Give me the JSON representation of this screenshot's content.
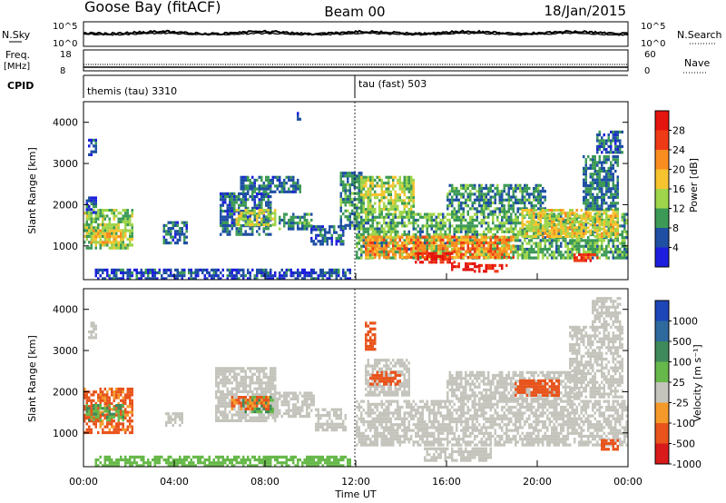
{
  "header": {
    "station": "Goose Bay (fitACF)",
    "beam": "Beam 00",
    "date": "18/Jan/2015"
  },
  "panels": {
    "nsky": {
      "label": "N.Sky",
      "ticks": [
        "10^5",
        "10^0"
      ],
      "right_label": "N.Search",
      "right_ticks": [
        "10^5",
        "10^0"
      ]
    },
    "freq": {
      "label": "Freq.",
      "unit": "[MHz]",
      "ticks": [
        "18",
        "8"
      ],
      "right_label": "Nave",
      "right_ticks": [
        "60",
        "0"
      ]
    },
    "cpid": {
      "label": "CPID",
      "segments": [
        "themis (tau) 3310",
        "tau (fast) 503"
      ]
    }
  },
  "power_colorbar": {
    "title": "Power [dB]",
    "labels": [
      "28",
      "24",
      "20",
      "16",
      "12",
      "8",
      "4"
    ],
    "colors": [
      "#e4140f",
      "#ef3a16",
      "#f98d20",
      "#f7c430",
      "#9fd54a",
      "#3c9a56",
      "#1e4fa3",
      "#1d1edd"
    ]
  },
  "velocity_colorbar": {
    "title": "Velocity [m s⁻¹]",
    "labels": [
      "1000",
      "500",
      "100",
      "25",
      "-25",
      "-100",
      "-500",
      "-1000"
    ],
    "colors": [
      "#1d46b8",
      "#2e6a9e",
      "#3f8a5a",
      "#67b84a",
      "#c4c4bc",
      "#f59a2a",
      "#e8541c",
      "#d81a1a"
    ]
  },
  "chart_data": [
    {
      "type": "heatmap",
      "name": "power",
      "ylabel": "Slant Range [km]",
      "ylim": [
        180,
        4500
      ],
      "yticks": [
        1000,
        2000,
        3000,
        4000
      ],
      "xlim": [
        0,
        24
      ],
      "xticks": [
        "00:00",
        "04:00",
        "08:00",
        "12:00",
        "16:00",
        "20:00",
        "00:00"
      ],
      "regions": [
        {
          "t0": 0.0,
          "t1": 2.2,
          "r0": 950,
          "r1": 1900,
          "v": 13
        },
        {
          "t0": 0.3,
          "t1": 1.9,
          "r0": 1050,
          "r1": 1400,
          "v": 18
        },
        {
          "t0": 0.1,
          "t1": 0.6,
          "r0": 1800,
          "r1": 2200,
          "v": 6
        },
        {
          "t0": 0.2,
          "t1": 0.6,
          "r0": 3200,
          "r1": 3600,
          "v": 5
        },
        {
          "t0": 3.5,
          "t1": 4.6,
          "r0": 1100,
          "r1": 1600,
          "v": 7
        },
        {
          "t0": 6.0,
          "t1": 8.3,
          "r0": 1300,
          "r1": 2300,
          "v": 7
        },
        {
          "t0": 6.7,
          "t1": 8.5,
          "r0": 1500,
          "r1": 1900,
          "v": 15
        },
        {
          "t0": 6.9,
          "t1": 9.6,
          "r0": 2300,
          "r1": 2700,
          "v": 7
        },
        {
          "t0": 8.6,
          "t1": 10.1,
          "r0": 1400,
          "r1": 1800,
          "v": 9
        },
        {
          "t0": 10.0,
          "t1": 11.5,
          "r0": 1050,
          "r1": 1500,
          "v": 6
        },
        {
          "t0": 9.4,
          "t1": 9.6,
          "r0": 4100,
          "r1": 4250,
          "v": 4
        },
        {
          "t0": 11.3,
          "t1": 12.3,
          "r0": 1400,
          "r1": 2800,
          "v": 9
        },
        {
          "t0": 12.0,
          "t1": 24.0,
          "r0": 700,
          "r1": 1800,
          "v": 11
        },
        {
          "t0": 12.3,
          "t1": 19.0,
          "r0": 750,
          "r1": 1250,
          "v": 22
        },
        {
          "t0": 14.6,
          "t1": 16.4,
          "r0": 620,
          "r1": 850,
          "v": 29
        },
        {
          "t0": 16.2,
          "t1": 17.4,
          "r0": 450,
          "r1": 600,
          "v": 30
        },
        {
          "t0": 17.2,
          "t1": 18.7,
          "r0": 400,
          "r1": 560,
          "v": 29
        },
        {
          "t0": 12.2,
          "t1": 14.6,
          "r0": 1800,
          "r1": 2700,
          "v": 14
        },
        {
          "t0": 16.0,
          "t1": 20.4,
          "r0": 1800,
          "r1": 2500,
          "v": 9
        },
        {
          "t0": 19.3,
          "t1": 23.6,
          "r0": 1200,
          "r1": 1900,
          "v": 17
        },
        {
          "t0": 22.0,
          "t1": 23.6,
          "r0": 1900,
          "r1": 3200,
          "v": 8
        },
        {
          "t0": 22.6,
          "t1": 23.8,
          "r0": 3300,
          "r1": 3800,
          "v": 6
        },
        {
          "t0": 21.6,
          "t1": 22.6,
          "r0": 620,
          "r1": 820,
          "v": 27
        },
        {
          "t0": 0.5,
          "t1": 11.8,
          "r0": 200,
          "r1": 450,
          "v": 5
        }
      ]
    },
    {
      "type": "heatmap",
      "name": "velocity",
      "ylabel": "Slant Range [km]",
      "xlabel": "Time UT",
      "ylim": [
        180,
        4500
      ],
      "yticks": [
        1000,
        2000,
        3000,
        4000
      ],
      "xlim": [
        0,
        24
      ],
      "xticks": [
        "00:00",
        "04:00",
        "08:00",
        "12:00",
        "16:00",
        "20:00",
        "00:00"
      ],
      "regions": [
        {
          "t0": 0.0,
          "t1": 2.2,
          "r0": 1000,
          "r1": 2100,
          "v": -120
        },
        {
          "t0": 0.1,
          "t1": 1.8,
          "r0": 1300,
          "r1": 1700,
          "v": 60
        },
        {
          "t0": 0.2,
          "t1": 0.6,
          "r0": 3300,
          "r1": 3700,
          "v": 0
        },
        {
          "t0": 3.6,
          "t1": 4.4,
          "r0": 1200,
          "r1": 1500,
          "v": 0
        },
        {
          "t0": 5.8,
          "t1": 8.5,
          "r0": 1300,
          "r1": 2600,
          "v": 0
        },
        {
          "t0": 7.0,
          "t1": 8.4,
          "r0": 1500,
          "r1": 1900,
          "v": 70
        },
        {
          "t0": 6.5,
          "t1": 8.2,
          "r0": 1600,
          "r1": 1900,
          "v": -110
        },
        {
          "t0": 8.5,
          "t1": 10.2,
          "r0": 1400,
          "r1": 2000,
          "v": 0
        },
        {
          "t0": 10.2,
          "t1": 11.6,
          "r0": 1100,
          "r1": 1600,
          "v": 0
        },
        {
          "t0": 12.0,
          "t1": 24.0,
          "r0": 700,
          "r1": 1800,
          "v": 0
        },
        {
          "t0": 12.4,
          "t1": 14.4,
          "r0": 1900,
          "r1": 2800,
          "v": 0
        },
        {
          "t0": 12.6,
          "t1": 14.0,
          "r0": 2200,
          "r1": 2500,
          "v": -300
        },
        {
          "t0": 12.4,
          "t1": 12.9,
          "r0": 3000,
          "r1": 3700,
          "v": -300
        },
        {
          "t0": 16.0,
          "t1": 22.0,
          "r0": 1800,
          "r1": 2500,
          "v": 0
        },
        {
          "t0": 19.0,
          "t1": 21.0,
          "r0": 1900,
          "r1": 2300,
          "v": -200
        },
        {
          "t0": 21.4,
          "t1": 23.8,
          "r0": 1900,
          "r1": 3600,
          "v": 0
        },
        {
          "t0": 22.4,
          "t1": 23.6,
          "r0": 3600,
          "r1": 4300,
          "v": 0
        },
        {
          "t0": 22.8,
          "t1": 23.6,
          "r0": 600,
          "r1": 850,
          "v": -220
        },
        {
          "t0": 0.5,
          "t1": 11.8,
          "r0": 200,
          "r1": 450,
          "v": 40
        },
        {
          "t0": 15.0,
          "t1": 18.0,
          "r0": 350,
          "r1": 650,
          "v": 0
        }
      ]
    }
  ]
}
